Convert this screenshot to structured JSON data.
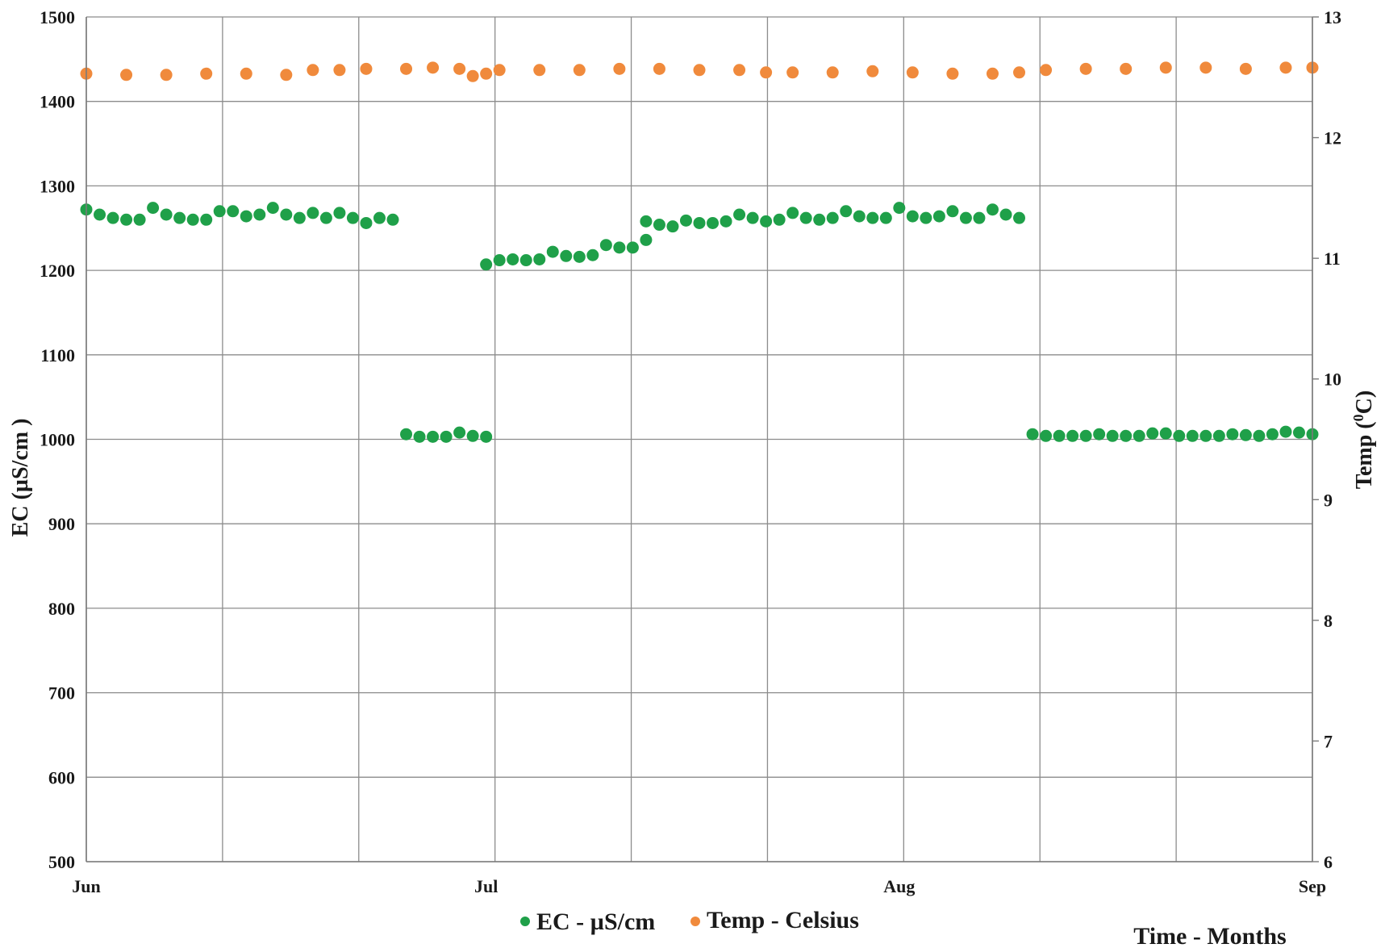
{
  "chart_data": {
    "type": "scatter",
    "x_axis": {
      "label": "Time - Months",
      "range": [
        "2000-06-01",
        "2000-09-01"
      ],
      "ticks": [
        "Jun",
        "Jul",
        "Aug",
        "Sep"
      ]
    },
    "y_axis_left": {
      "label": "EC (µS/cm )",
      "range": [
        500,
        1500
      ],
      "ticks": [
        500,
        600,
        700,
        800,
        900,
        1000,
        1100,
        1200,
        1300,
        1400,
        1500
      ]
    },
    "y_axis_right": {
      "label_prefix": "Temp (",
      "label_superscript": "0",
      "label_suffix": "C)",
      "range": [
        6,
        13
      ],
      "ticks": [
        6,
        7,
        8,
        9,
        10,
        11,
        12,
        13
      ]
    },
    "grid": true,
    "legend_position": "bottom",
    "series": [
      {
        "name": "EC - µS/cm",
        "axis": "left",
        "color": "#1fa049",
        "points": [
          [
            "2000-06-01",
            1272
          ],
          [
            "2000-06-02",
            1266
          ],
          [
            "2000-06-03",
            1262
          ],
          [
            "2000-06-04",
            1260
          ],
          [
            "2000-06-05",
            1260
          ],
          [
            "2000-06-06",
            1274
          ],
          [
            "2000-06-07",
            1266
          ],
          [
            "2000-06-08",
            1262
          ],
          [
            "2000-06-09",
            1260
          ],
          [
            "2000-06-10",
            1260
          ],
          [
            "2000-06-11",
            1270
          ],
          [
            "2000-06-12",
            1270
          ],
          [
            "2000-06-13",
            1264
          ],
          [
            "2000-06-14",
            1266
          ],
          [
            "2000-06-15",
            1274
          ],
          [
            "2000-06-16",
            1266
          ],
          [
            "2000-06-17",
            1262
          ],
          [
            "2000-06-18",
            1268
          ],
          [
            "2000-06-19",
            1262
          ],
          [
            "2000-06-20",
            1268
          ],
          [
            "2000-06-21",
            1262
          ],
          [
            "2000-06-22",
            1256
          ],
          [
            "2000-06-23",
            1262
          ],
          [
            "2000-06-24",
            1260
          ],
          [
            "2000-06-25",
            1006
          ],
          [
            "2000-06-26",
            1003
          ],
          [
            "2000-06-27",
            1003
          ],
          [
            "2000-06-28",
            1003
          ],
          [
            "2000-06-29",
            1008
          ],
          [
            "2000-06-30",
            1004
          ],
          [
            "2000-07-01",
            1003
          ],
          [
            "2000-07-01",
            1207
          ],
          [
            "2000-07-02",
            1212
          ],
          [
            "2000-07-03",
            1213
          ],
          [
            "2000-07-04",
            1212
          ],
          [
            "2000-07-05",
            1213
          ],
          [
            "2000-07-06",
            1222
          ],
          [
            "2000-07-07",
            1217
          ],
          [
            "2000-07-08",
            1216
          ],
          [
            "2000-07-09",
            1218
          ],
          [
            "2000-07-10",
            1230
          ],
          [
            "2000-07-11",
            1227
          ],
          [
            "2000-07-12",
            1227
          ],
          [
            "2000-07-13",
            1236
          ],
          [
            "2000-07-13",
            1258
          ],
          [
            "2000-07-14",
            1254
          ],
          [
            "2000-07-15",
            1252
          ],
          [
            "2000-07-16",
            1259
          ],
          [
            "2000-07-17",
            1256
          ],
          [
            "2000-07-18",
            1256
          ],
          [
            "2000-07-19",
            1258
          ],
          [
            "2000-07-20",
            1266
          ],
          [
            "2000-07-21",
            1262
          ],
          [
            "2000-07-22",
            1258
          ],
          [
            "2000-07-23",
            1260
          ],
          [
            "2000-07-24",
            1268
          ],
          [
            "2000-07-25",
            1262
          ],
          [
            "2000-07-26",
            1260
          ],
          [
            "2000-07-27",
            1262
          ],
          [
            "2000-07-28",
            1270
          ],
          [
            "2000-07-29",
            1264
          ],
          [
            "2000-07-30",
            1262
          ],
          [
            "2000-07-31",
            1262
          ],
          [
            "2000-08-01",
            1274
          ],
          [
            "2000-08-02",
            1264
          ],
          [
            "2000-08-03",
            1262
          ],
          [
            "2000-08-04",
            1264
          ],
          [
            "2000-08-05",
            1270
          ],
          [
            "2000-08-06",
            1262
          ],
          [
            "2000-08-07",
            1262
          ],
          [
            "2000-08-08",
            1272
          ],
          [
            "2000-08-09",
            1266
          ],
          [
            "2000-08-10",
            1262
          ],
          [
            "2000-08-11",
            1006
          ],
          [
            "2000-08-12",
            1004
          ],
          [
            "2000-08-13",
            1004
          ],
          [
            "2000-08-14",
            1004
          ],
          [
            "2000-08-15",
            1004
          ],
          [
            "2000-08-16",
            1006
          ],
          [
            "2000-08-17",
            1004
          ],
          [
            "2000-08-18",
            1004
          ],
          [
            "2000-08-19",
            1004
          ],
          [
            "2000-08-20",
            1007
          ],
          [
            "2000-08-21",
            1007
          ],
          [
            "2000-08-22",
            1004
          ],
          [
            "2000-08-23",
            1004
          ],
          [
            "2000-08-24",
            1004
          ],
          [
            "2000-08-25",
            1004
          ],
          [
            "2000-08-26",
            1006
          ],
          [
            "2000-08-27",
            1005
          ],
          [
            "2000-08-28",
            1004
          ],
          [
            "2000-08-29",
            1006
          ],
          [
            "2000-08-30",
            1009
          ],
          [
            "2000-08-31",
            1008
          ],
          [
            "2000-09-01",
            1006
          ]
        ]
      },
      {
        "name": "Temp - Celsius",
        "axis": "right",
        "color": "#f08a3c",
        "points": [
          [
            "2000-06-01",
            12.53
          ],
          [
            "2000-06-04",
            12.52
          ],
          [
            "2000-06-07",
            12.52
          ],
          [
            "2000-06-10",
            12.53
          ],
          [
            "2000-06-13",
            12.53
          ],
          [
            "2000-06-16",
            12.52
          ],
          [
            "2000-06-18",
            12.56
          ],
          [
            "2000-06-20",
            12.56
          ],
          [
            "2000-06-22",
            12.57
          ],
          [
            "2000-06-25",
            12.57
          ],
          [
            "2000-06-27",
            12.58
          ],
          [
            "2000-06-29",
            12.57
          ],
          [
            "2000-06-30",
            12.51
          ],
          [
            "2000-07-01",
            12.53
          ],
          [
            "2000-07-02",
            12.56
          ],
          [
            "2000-07-05",
            12.56
          ],
          [
            "2000-07-08",
            12.56
          ],
          [
            "2000-07-11",
            12.57
          ],
          [
            "2000-07-14",
            12.57
          ],
          [
            "2000-07-17",
            12.56
          ],
          [
            "2000-07-20",
            12.56
          ],
          [
            "2000-07-22",
            12.54
          ],
          [
            "2000-07-24",
            12.54
          ],
          [
            "2000-07-27",
            12.54
          ],
          [
            "2000-07-30",
            12.55
          ],
          [
            "2000-08-02",
            12.54
          ],
          [
            "2000-08-05",
            12.53
          ],
          [
            "2000-08-08",
            12.53
          ],
          [
            "2000-08-10",
            12.54
          ],
          [
            "2000-08-12",
            12.56
          ],
          [
            "2000-08-15",
            12.57
          ],
          [
            "2000-08-18",
            12.57
          ],
          [
            "2000-08-21",
            12.58
          ],
          [
            "2000-08-24",
            12.58
          ],
          [
            "2000-08-27",
            12.57
          ],
          [
            "2000-08-30",
            12.58
          ],
          [
            "2000-09-01",
            12.58
          ]
        ]
      }
    ]
  }
}
